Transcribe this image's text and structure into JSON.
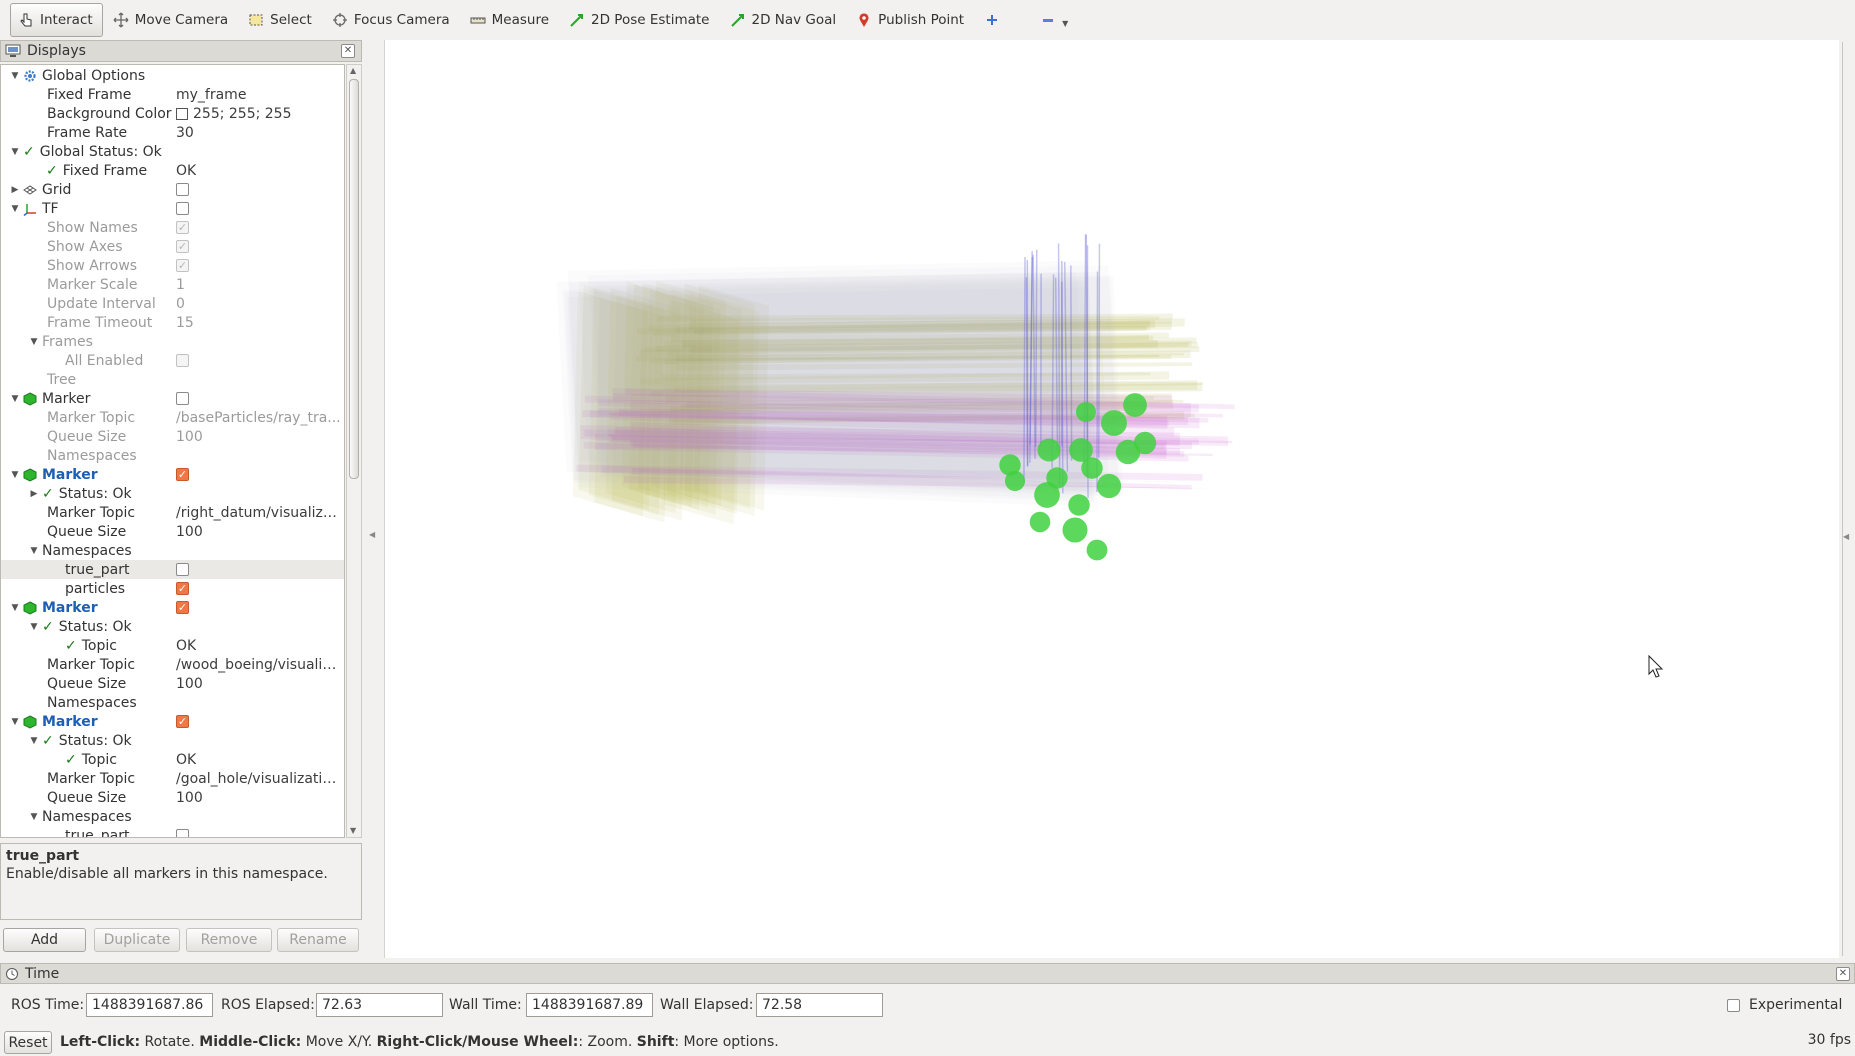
{
  "toolbar": {
    "tools": [
      {
        "label": "Interact",
        "icon": "hand-pointer-icon",
        "active": true
      },
      {
        "label": "Move Camera",
        "icon": "move-camera-icon"
      },
      {
        "label": "Select",
        "icon": "select-box-icon"
      },
      {
        "label": "Focus Camera",
        "icon": "focus-camera-icon"
      },
      {
        "label": "Measure",
        "icon": "ruler-icon"
      },
      {
        "label": "2D Pose Estimate",
        "icon": "green-arrow-icon"
      },
      {
        "label": "2D Nav Goal",
        "icon": "green-arrow-icon"
      },
      {
        "label": "Publish Point",
        "icon": "map-pin-icon"
      }
    ]
  },
  "displays": {
    "title": "Displays",
    "rows": [
      {
        "label": "Global Options",
        "value": ""
      },
      {
        "label": "Fixed Frame",
        "value": "my_frame"
      },
      {
        "label": "Background Color",
        "value": "255; 255; 255"
      },
      {
        "label": "Frame Rate",
        "value": "30"
      },
      {
        "label": "Global Status: Ok",
        "value": ""
      },
      {
        "label": "Fixed Frame",
        "value": "OK"
      },
      {
        "label": "Grid",
        "value": ""
      },
      {
        "label": "TF",
        "value": ""
      },
      {
        "label": "Show Names",
        "value": ""
      },
      {
        "label": "Show Axes",
        "value": ""
      },
      {
        "label": "Show Arrows",
        "value": ""
      },
      {
        "label": "Marker Scale",
        "value": "1"
      },
      {
        "label": "Update Interval",
        "value": "0"
      },
      {
        "label": "Frame Timeout",
        "value": "15"
      },
      {
        "label": "Frames",
        "value": ""
      },
      {
        "label": "All Enabled",
        "value": ""
      },
      {
        "label": "Tree",
        "value": ""
      },
      {
        "label": "Marker",
        "value": ""
      },
      {
        "label": "Marker Topic",
        "value": "/baseParticles/ray_tra..."
      },
      {
        "label": "Queue Size",
        "value": "100"
      },
      {
        "label": "Namespaces",
        "value": ""
      },
      {
        "label": "Marker",
        "value": ""
      },
      {
        "label": "Status: Ok",
        "value": ""
      },
      {
        "label": "Marker Topic",
        "value": "/right_datum/visualiza..."
      },
      {
        "label": "Queue Size",
        "value": "100"
      },
      {
        "label": "Namespaces",
        "value": ""
      },
      {
        "label": "true_part",
        "value": ""
      },
      {
        "label": "particles",
        "value": ""
      },
      {
        "label": "Marker",
        "value": ""
      },
      {
        "label": "Status: Ok",
        "value": ""
      },
      {
        "label": "Topic",
        "value": "OK"
      },
      {
        "label": "Marker Topic",
        "value": "/wood_boeing/visualiz..."
      },
      {
        "label": "Queue Size",
        "value": "100"
      },
      {
        "label": "Namespaces",
        "value": ""
      },
      {
        "label": "Marker",
        "value": ""
      },
      {
        "label": "Status: Ok",
        "value": ""
      },
      {
        "label": "Topic",
        "value": "OK"
      },
      {
        "label": "Marker Topic",
        "value": "/goal_hole/visualizatio..."
      },
      {
        "label": "Queue Size",
        "value": "100"
      },
      {
        "label": "Namespaces",
        "value": ""
      },
      {
        "label": "true_part",
        "value": ""
      }
    ]
  },
  "description": {
    "title": "true_part",
    "text": "Enable/disable all markers in this namespace."
  },
  "panel_buttons": {
    "add": "Add",
    "duplicate": "Duplicate",
    "remove": "Remove",
    "rename": "Rename"
  },
  "time": {
    "title": "Time",
    "ros_time_label": "ROS Time:",
    "ros_time": "1488391687.86",
    "ros_elapsed_label": "ROS Elapsed:",
    "ros_elapsed": "72.63",
    "wall_time_label": "Wall Time:",
    "wall_time": "1488391687.89",
    "wall_elapsed_label": "Wall Elapsed:",
    "wall_elapsed": "72.58",
    "experimental_label": "Experimental"
  },
  "status": {
    "reset": "Reset",
    "hint_parts": [
      {
        "b": "Left-Click:",
        "t": " Rotate. "
      },
      {
        "b": "Middle-Click:",
        "t": " Move X/Y. "
      },
      {
        "b": "Right-Click/Mouse Wheel:",
        "t": ": Zoom. "
      },
      {
        "b": "Shift",
        "t": ": More options."
      }
    ],
    "fps": "30 fps"
  },
  "colors": {
    "accent_checkbox": "#f07746",
    "status_ok": "#1a7a1a",
    "marker_name": "#1c5fb4",
    "olive_slices": "#a7a42a",
    "magenta_slices": "#c040c8",
    "green_particles": "#3fd13f",
    "blue_axes": "#5b5bd6"
  }
}
